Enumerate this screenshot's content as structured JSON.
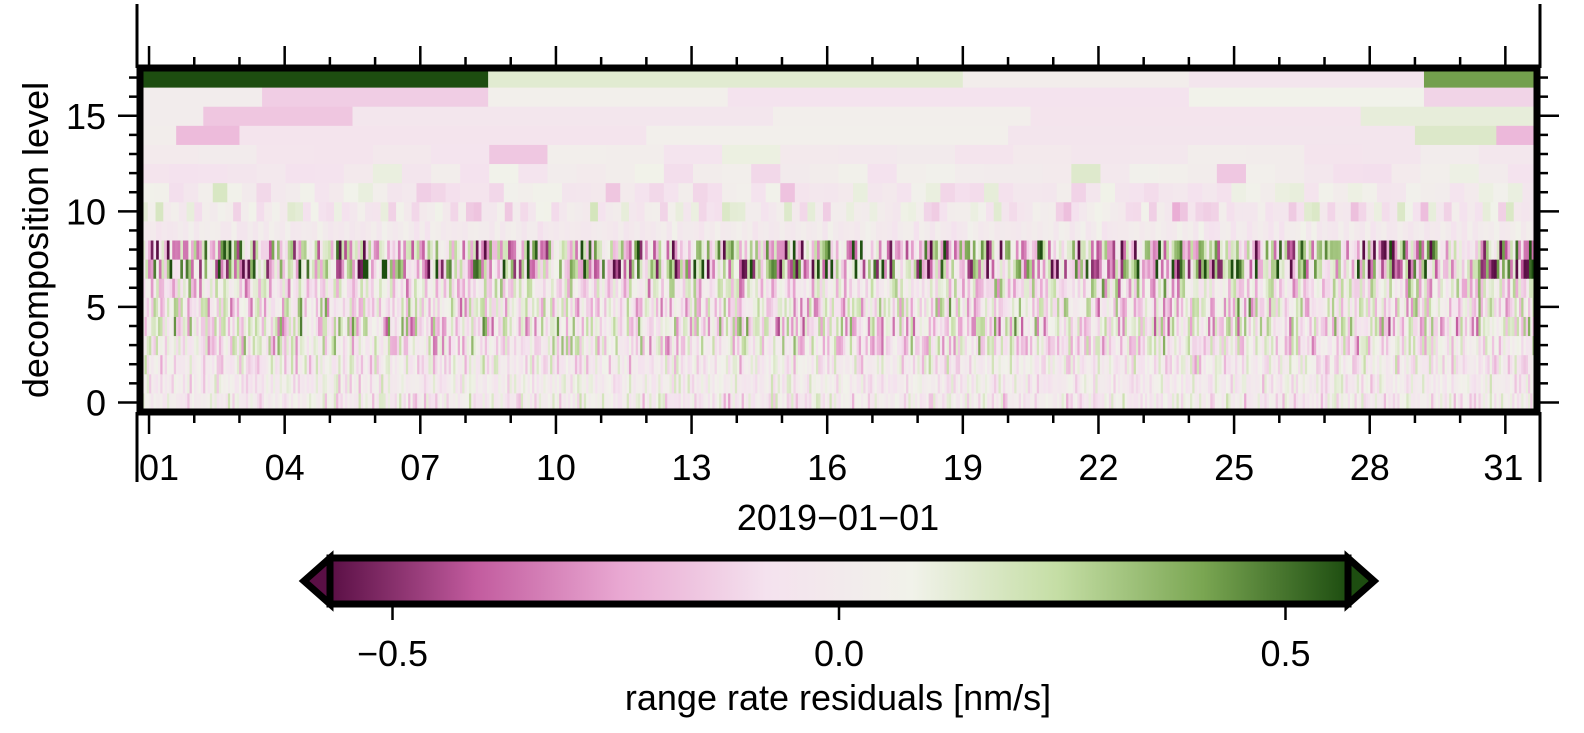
{
  "chart_data": {
    "type": "heatmap",
    "title": "",
    "xlabel": "2019−01−01",
    "ylabel": "decomposition level",
    "x_ticks": [
      "01",
      "04",
      "07",
      "10",
      "13",
      "16",
      "19",
      "22",
      "25",
      "28",
      "31"
    ],
    "x_tick_days": [
      1,
      4,
      7,
      10,
      13,
      16,
      19,
      22,
      25,
      28,
      31
    ],
    "x_range_days": [
      0.8,
      31.7
    ],
    "y_ticks": [
      "0",
      "5",
      "10",
      "15"
    ],
    "y_tick_values": [
      0,
      5,
      10,
      15
    ],
    "y_range": [
      -0.5,
      17.5
    ],
    "levels": 18,
    "colorbar": {
      "label": "range rate residuals [nm/s]",
      "ticks": [
        "−0.5",
        "0.0",
        "0.5"
      ],
      "tick_values": [
        -0.5,
        0.0,
        0.5
      ],
      "range": [
        -0.57,
        0.57
      ],
      "extend": "both",
      "cmap": "PiYG",
      "colors": [
        "#5a0f45",
        "#c25b9e",
        "#e9a8d2",
        "#f4e2ee",
        "#f1f2ea",
        "#c5dea5",
        "#7aa652",
        "#1d4d10"
      ]
    },
    "top_levels": [
      {
        "level": 17,
        "segments": [
          {
            "from": 0.8,
            "to": 8.5,
            "value": 0.6
          },
          {
            "from": 8.5,
            "to": 19.0,
            "value": 0.14
          },
          {
            "from": 19.0,
            "to": 24.0,
            "value": 0.03
          },
          {
            "from": 24.0,
            "to": 29.2,
            "value": -0.05
          },
          {
            "from": 29.2,
            "to": 31.7,
            "value": 0.42
          }
        ]
      },
      {
        "level": 16,
        "segments": [
          {
            "from": 0.8,
            "to": 3.5,
            "value": 0.02
          },
          {
            "from": 3.5,
            "to": 8.5,
            "value": -0.14
          },
          {
            "from": 8.5,
            "to": 13.8,
            "value": 0.05
          },
          {
            "from": 13.8,
            "to": 24.0,
            "value": -0.07
          },
          {
            "from": 24.0,
            "to": 29.2,
            "value": 0.08
          },
          {
            "from": 29.2,
            "to": 31.7,
            "value": -0.12
          }
        ]
      },
      {
        "level": 15,
        "segments": [
          {
            "from": 0.8,
            "to": 2.2,
            "value": 0.02
          },
          {
            "from": 2.2,
            "to": 5.5,
            "value": -0.16
          },
          {
            "from": 5.5,
            "to": 14.8,
            "value": -0.04
          },
          {
            "from": 14.8,
            "to": 20.5,
            "value": 0.04
          },
          {
            "from": 20.5,
            "to": 27.8,
            "value": -0.06
          },
          {
            "from": 27.8,
            "to": 31.7,
            "value": 0.12
          }
        ]
      },
      {
        "level": 14,
        "segments": [
          {
            "from": 0.8,
            "to": 1.6,
            "value": 0.03
          },
          {
            "from": 1.6,
            "to": 3.0,
            "value": -0.19
          },
          {
            "from": 3.0,
            "to": 12.0,
            "value": -0.06
          },
          {
            "from": 12.0,
            "to": 20.0,
            "value": 0.05
          },
          {
            "from": 20.0,
            "to": 29.0,
            "value": -0.05
          },
          {
            "from": 29.0,
            "to": 30.8,
            "value": 0.16
          },
          {
            "from": 30.8,
            "to": 31.7,
            "value": -0.2
          }
        ]
      }
    ]
  }
}
